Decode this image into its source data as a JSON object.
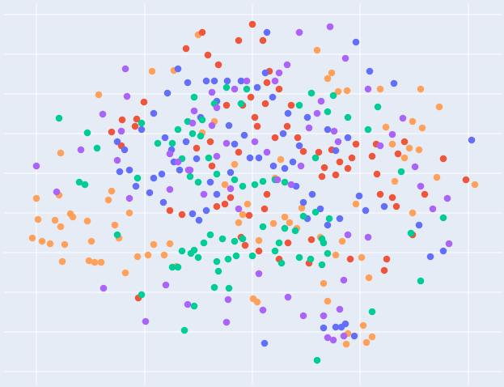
{
  "chart_data": {
    "type": "scatter",
    "grid": true,
    "background": "#E5ECF6",
    "grid_color": "#ffffff",
    "xlim": [
      5,
      620
    ],
    "ylim": [
      3,
      473
    ],
    "xticks": [
      45,
      179,
      312,
      445,
      579
    ],
    "yticks": [
      19,
      68,
      117,
      166,
      215,
      264,
      313,
      362,
      411,
      460
    ],
    "series": [
      {
        "color": "#FFA15A",
        "x": [
          45,
          40,
          47,
          52,
          62,
          68,
          75,
          80,
          77,
          75,
          73,
          87,
          90,
          108,
          113,
          110,
          117,
          125,
          122,
          138,
          134,
          142,
          147,
          155,
          160,
          170,
          183,
          190,
          203,
          210,
          218,
          188,
          215,
          245,
          250,
          265,
          278,
          290,
          295,
          300,
          306,
          318,
          313,
          320,
          338,
          347,
          358,
          367,
          373,
          370,
          392,
          405,
          410,
          418,
          429,
          396,
          400,
          405,
          415,
          423,
          440,
          447,
          456,
          470,
          477,
          485,
          488,
          500,
          506,
          510,
          520,
          522,
          518,
          510,
          543,
          540,
          587,
          430,
          449,
          453,
          460,
          428,
          340,
          352
        ],
        "values": [
          233,
          184,
          207,
          180,
          177,
          206,
          198,
          176,
          155,
          289,
          237,
          214,
          210,
          205,
          180,
          156,
          154,
          154,
          361,
          242,
          231,
          200,
          184,
          141,
          215,
          161,
          163,
          176,
          163,
          177,
          149,
          390,
          391,
          435,
          314,
          328,
          250,
          275,
          203,
          213,
          226,
          105,
          109,
          181,
          202,
          281,
          203,
          196,
          221,
          438,
          416,
          381,
          388,
          365,
          366,
          185,
          128,
          106,
          163,
          180,
          226,
          160,
          135,
          368,
          321,
          300,
          254,
          283,
          295,
          328,
          368,
          320,
          293,
          215,
          346,
          259,
          250,
          66,
          76,
          55,
          62,
          53,
          258,
          210
        ]
      },
      {
        "color": "#EF553B",
        "x": [
          171,
          138,
          151,
          169,
          178,
          167,
          150,
          230,
          250,
          257,
          270,
          295,
          312,
          325,
          333,
          330,
          345,
          328,
          318,
          310,
          315,
          300,
          280,
          295,
          260,
          243,
          262,
          210,
          225,
          268,
          278,
          285,
          308,
          330,
          327,
          298,
          303,
          320,
          340,
          355,
          360,
          368,
          375,
          394,
          401,
          398,
          410,
          420,
          415,
          430,
          435,
          440,
          460,
          465,
          466,
          470,
          485,
          492,
          490,
          500,
          510,
          525,
          548,
          576,
          478,
          475,
          433,
          382,
          385,
          356,
          345
        ],
        "values": [
          110,
          315,
          330,
          331,
          352,
          322,
          298,
          418,
          438,
          410,
          398,
          428,
          448,
          428,
          390,
          376,
          368,
          350,
          322,
          358,
          333,
          348,
          348,
          290,
          303,
          295,
          273,
          218,
          213,
          223,
          226,
          234,
          212,
          238,
          220,
          185,
          175,
          168,
          308,
          322,
          348,
          308,
          291,
          290,
          271,
          260,
          293,
          278,
          262,
          270,
          283,
          300,
          285,
          300,
          263,
          238,
          234,
          288,
          223,
          303,
          188,
          238,
          282,
          256,
          158,
          144,
          158,
          153,
          182,
          178,
          158
        ]
      },
      {
        "color": "#636EFA",
        "x": [
          440,
          457,
          487,
          583,
          548,
          532,
          518,
          475,
          452,
          420,
          444,
          415,
          430,
          405,
          380,
          370,
          362,
          350,
          356,
          337,
          328,
          318,
          298,
          281,
          265,
          255,
          232,
          220,
          207,
          190,
          175,
          160,
          168,
          148,
          145,
          154,
          190,
          185,
          200,
          202,
          215,
          222,
          238,
          246,
          255,
          268,
          260,
          230,
          212,
          204,
          248,
          268,
          283,
          302,
          290,
          309,
          320,
          338,
          352,
          366,
          375,
          380,
          386,
          396,
          405,
          400,
          415,
          427,
          422,
          438,
          327,
          285,
          243,
          330
        ],
        "values": [
          426,
          390,
          375,
          305,
          168,
          161,
          200,
          223,
          218,
          208,
          236,
          292,
          308,
          318,
          333,
          298,
          278,
          313,
          338,
          358,
          388,
          370,
          378,
          378,
          378,
          378,
          376,
          393,
          363,
          338,
          318,
          268,
          248,
          266,
          303,
          293,
          258,
          240,
          263,
          228,
          278,
          268,
          214,
          206,
          218,
          238,
          253,
          303,
          293,
          308,
          333,
          353,
          323,
          311,
          300,
          283,
          283,
          273,
          270,
          248,
          228,
          208,
          238,
          220,
          200,
          73,
          74,
          78,
          74,
          63,
          54,
          265,
          282,
          438
        ]
      },
      {
        "color": "#00CC96",
        "x": [
          73,
          108,
          105,
          98,
          120,
          175,
          170,
          145,
          175,
          240,
          250,
          265,
          280,
          298,
          305,
          232,
          238,
          248,
          220,
          195,
          213,
          225,
          235,
          245,
          258,
          268,
          290,
          300,
          315,
          325,
          340,
          352,
          390,
          385,
          370,
          412,
          405,
          430,
          455,
          467,
          496,
          548,
          508,
          520,
          407,
          390,
          375,
          365,
          352,
          345,
          325,
          300,
          290,
          275,
          260,
          252,
          240,
          225,
          213,
          220,
          236,
          245,
          268,
          282,
          270,
          292,
          312,
          340,
          348,
          370,
          384,
          398,
          398,
          400,
          405,
          460,
          392,
          228,
          240,
          283,
          265
        ],
        "values": [
          332,
          314,
          250,
          253,
          295,
          326,
          258,
          188,
          114,
          358,
          330,
          350,
          370,
          350,
          368,
          328,
          313,
          310,
          318,
          301,
          301,
          282,
          260,
          253,
          283,
          263,
          256,
          248,
          250,
          254,
          256,
          253,
          283,
          363,
          348,
          360,
          340,
          333,
          318,
          346,
          266,
          209,
          190,
          131,
          208,
          216,
          211,
          193,
          196,
          178,
          198,
          183,
          180,
          183,
          188,
          178,
          169,
          168,
          148,
          148,
          165,
          160,
          155,
          158,
          143,
          162,
          162,
          168,
          153,
          160,
          158,
          151,
          183,
          178,
          165,
          93,
          33,
          70,
          100,
          122,
          123
        ]
      },
      {
        "color": "#AB63FA",
        "x": [
          45,
          70,
          100,
          127,
          155,
          157,
          145,
          150,
          160,
          128,
          180,
          205,
          232,
          280,
          282,
          210,
          210,
          220,
          233,
          238,
          262,
          262,
          268,
          290,
          305,
          340,
          345,
          355,
          370,
          408,
          427,
          455,
          485,
          498,
          513,
          520,
          535,
          555,
          553,
          470,
          455,
          430,
          425,
          420,
          400,
          356,
          375,
          325,
          320,
          295,
          285,
          268,
          240,
          235,
          252,
          280,
          315,
          330,
          343,
          360,
          372,
          382,
          392,
          397,
          413,
          418,
          425,
          405,
          412
        ],
        "values": [
          273,
          241,
          293,
          337,
          393,
          359,
          280,
          316,
          233,
          122,
          81,
          126,
          102,
          80,
          108,
          244,
          288,
          278,
          268,
          326,
          323,
          364,
          345,
          368,
          378,
          378,
          388,
          398,
          438,
          445,
          406,
          368,
          312,
          332,
          272,
          248,
          220,
          177,
          233,
          298,
          185,
          188,
          132,
          96,
          88,
          111,
          88,
          95,
          140,
          220,
          245,
          285,
          341,
          268,
          238,
          301,
          303,
          290,
          256,
          250,
          273,
          320,
          338,
          353,
          316,
          303,
          63,
          61,
          58
        ]
      }
    ]
  }
}
